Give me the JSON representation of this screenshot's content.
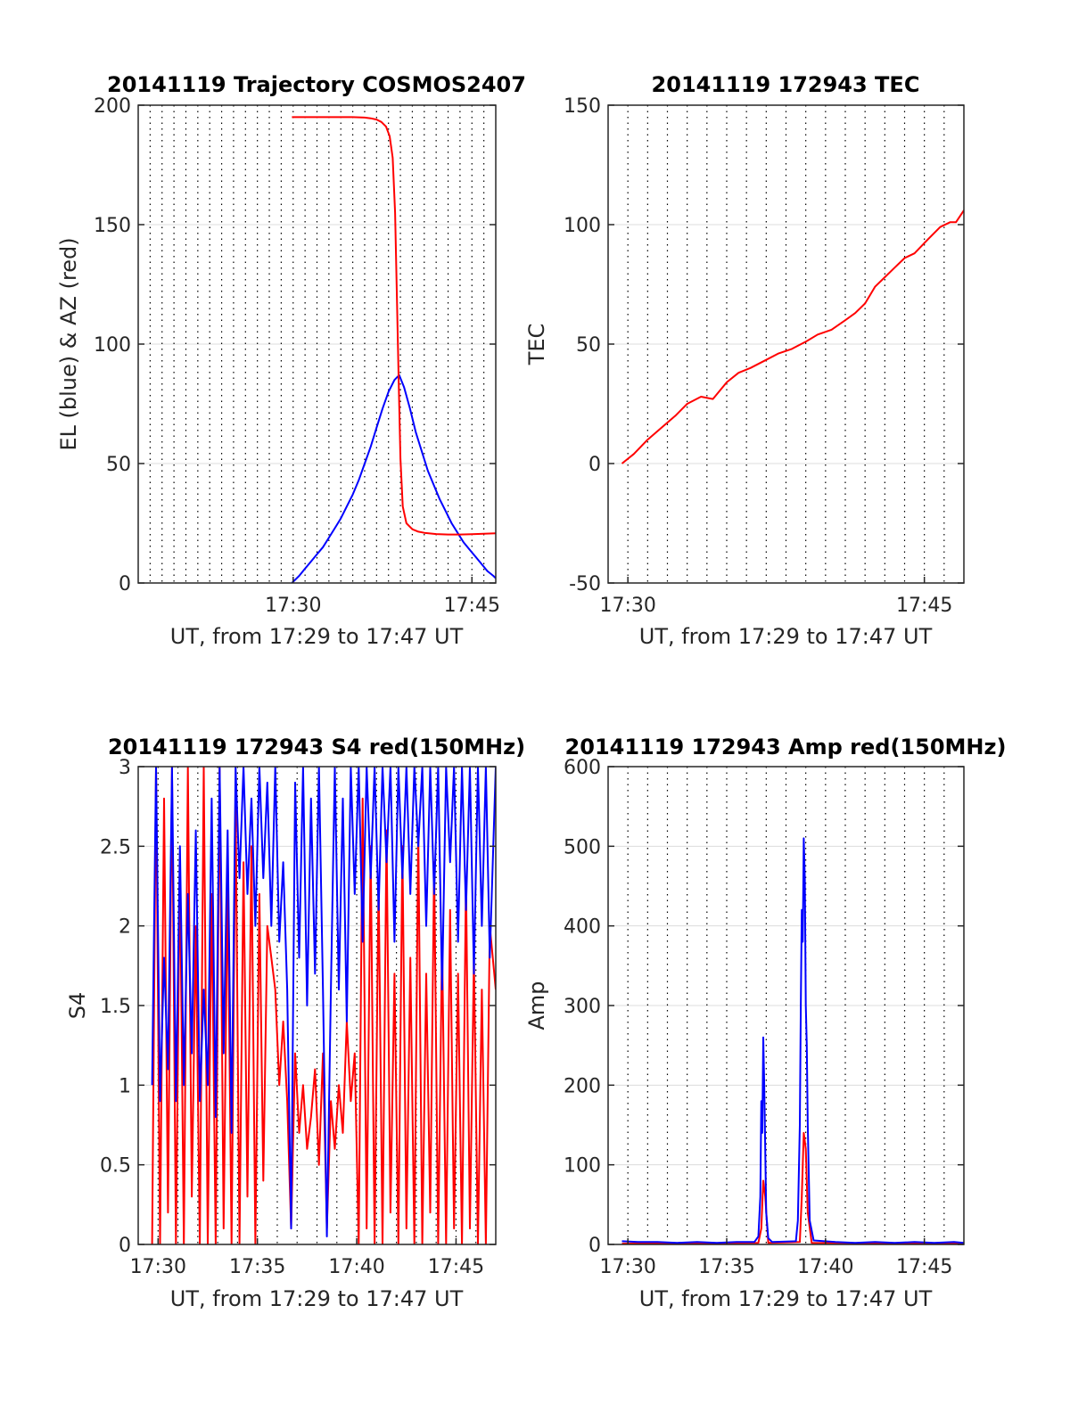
{
  "chart_data": [
    {
      "type": "line",
      "title": "20141119 Trajectory COSMOS2407",
      "xlabel": "UT, from 17:29 to 17:47 UT",
      "ylabel": "EL (blue) & AZ (red)",
      "xlim": [
        17.0,
        47.0
      ],
      "ylim": [
        0,
        200
      ],
      "x_ticks": [
        30,
        45
      ],
      "x_tick_labels": [
        "17:30",
        "17:45"
      ],
      "y_ticks": [
        0,
        50,
        100,
        150,
        200
      ],
      "y_tick_labels": [
        "0",
        "50",
        "100",
        "150",
        "200"
      ],
      "grid": true,
      "series": [
        {
          "color": "#0000ff",
          "x": [
            29.9,
            30.5,
            31.0,
            31.5,
            32.0,
            32.5,
            33.0,
            33.5,
            34.0,
            34.5,
            35.0,
            35.5,
            36.0,
            36.5,
            37.0,
            37.5,
            38.0,
            38.5,
            38.9,
            39.3,
            39.8,
            40.3,
            40.8,
            41.3,
            41.8,
            42.3,
            42.8,
            43.3,
            43.8,
            44.3,
            44.8,
            45.3,
            45.8,
            46.3,
            46.8,
            47.0
          ],
          "values": [
            0,
            3,
            6,
            9,
            12,
            15,
            19,
            23,
            27,
            32,
            37,
            43,
            50,
            57,
            65,
            73,
            80,
            85,
            87,
            82,
            73,
            63,
            55,
            47,
            41,
            35,
            30,
            25,
            21,
            17,
            14,
            11,
            8,
            5,
            3,
            2
          ]
        },
        {
          "color": "#ff0000",
          "x": [
            29.9,
            31.0,
            32.0,
            33.0,
            34.0,
            35.0,
            36.0,
            36.5,
            37.0,
            37.4,
            37.8,
            38.1,
            38.35,
            38.55,
            38.7,
            38.85,
            39.0,
            39.2,
            39.5,
            40.0,
            40.5,
            41.0,
            42.0,
            43.0,
            44.0,
            45.0,
            46.0,
            47.0
          ],
          "values": [
            195,
            195,
            195,
            195,
            195,
            195,
            194.8,
            194.5,
            194,
            193,
            191,
            187,
            178,
            155,
            120,
            85,
            52,
            32,
            25,
            22.5,
            21.5,
            21,
            20.5,
            20.3,
            20.3,
            20.4,
            20.6,
            20.8
          ]
        }
      ]
    },
    {
      "type": "line",
      "title": "20141119 172943 TEC",
      "xlabel": "UT, from 17:29 to 17:47 UT",
      "ylabel": "TEC",
      "xlim": [
        29.0,
        47.0
      ],
      "ylim": [
        -50,
        150
      ],
      "x_ticks": [
        30,
        45
      ],
      "x_tick_labels": [
        "17:30",
        "17:45"
      ],
      "y_ticks": [
        -50,
        0,
        50,
        100,
        150
      ],
      "y_tick_labels": [
        "-50",
        "0",
        "50",
        "100",
        "150"
      ],
      "grid": true,
      "series": [
        {
          "color": "#ff0000",
          "x": [
            29.7,
            30.3,
            31.0,
            31.7,
            32.4,
            33.0,
            33.7,
            34.3,
            35.0,
            35.6,
            36.2,
            36.9,
            37.6,
            38.3,
            39.0,
            39.6,
            40.3,
            41.0,
            41.5,
            42.0,
            42.5,
            43.0,
            43.5,
            44.0,
            44.5,
            45.2,
            45.8,
            46.3,
            46.6,
            47.0
          ],
          "values": [
            0,
            4,
            10,
            15,
            20,
            25,
            28,
            27,
            34,
            38,
            40,
            43,
            46,
            48,
            51,
            54,
            56,
            60,
            63,
            67,
            74,
            78,
            82,
            86,
            88,
            94,
            99,
            101,
            101,
            106
          ]
        }
      ]
    },
    {
      "type": "line",
      "title": "20141119 172943 S4 red(150MHz)",
      "xlabel": "UT, from 17:29 to 17:47 UT",
      "ylabel": "S4",
      "xlim": [
        29.0,
        47.0
      ],
      "ylim": [
        0,
        3
      ],
      "x_ticks": [
        30,
        35,
        40,
        45
      ],
      "x_tick_labels": [
        "17:30",
        "17:35",
        "17:40",
        "17:45"
      ],
      "y_ticks": [
        0,
        0.5,
        1,
        1.5,
        2,
        2.5,
        3
      ],
      "y_tick_labels": [
        "0",
        "0.5",
        "1",
        "1.5",
        "2",
        "2.5",
        "3"
      ],
      "grid": true,
      "series": [
        {
          "color": "#ff0000",
          "x": [
            29.7,
            29.9,
            30.1,
            30.3,
            30.5,
            30.7,
            30.9,
            31.1,
            31.3,
            31.5,
            31.7,
            31.9,
            32.1,
            32.3,
            32.5,
            32.7,
            32.9,
            33.1,
            33.3,
            33.5,
            33.7,
            33.9,
            34.1,
            34.3,
            34.5,
            34.7,
            34.9,
            35.1,
            35.3,
            35.5,
            35.7,
            35.9,
            36.1,
            36.3,
            36.5,
            36.7,
            36.9,
            37.1,
            37.3,
            37.5,
            37.7,
            37.9,
            38.1,
            38.3,
            38.5,
            38.7,
            38.9,
            39.1,
            39.3,
            39.5,
            39.7,
            39.9,
            40.1,
            40.3,
            40.5,
            40.7,
            40.9,
            41.1,
            41.3,
            41.5,
            41.7,
            41.9,
            42.1,
            42.3,
            42.5,
            42.7,
            42.9,
            43.1,
            43.3,
            43.5,
            43.7,
            43.9,
            44.1,
            44.3,
            44.5,
            44.7,
            44.9,
            45.1,
            45.3,
            45.5,
            45.7,
            45.9,
            46.1,
            46.3,
            46.5,
            46.7,
            47.0
          ],
          "values": [
            0,
            3,
            0,
            2.8,
            0.2,
            3,
            0,
            2.4,
            0,
            3,
            0.3,
            2,
            0,
            3,
            0,
            2.2,
            0,
            3,
            0.1,
            2.3,
            0,
            2.8,
            0,
            2.4,
            0.3,
            2.5,
            0,
            2.2,
            0.4,
            2.0,
            1.8,
            1.6,
            1.0,
            1.4,
            0.9,
            0.1,
            1.2,
            0.7,
            1.0,
            0.6,
            0.8,
            1.1,
            0.5,
            1.2,
            0.1,
            0.9,
            0.6,
            1.0,
            0.7,
            1.4,
            0.9,
            1.2,
            0,
            2.8,
            0.1,
            2.5,
            0,
            2.3,
            0,
            2.6,
            0.2,
            1.7,
            0,
            2.5,
            0.1,
            1.8,
            0,
            2.6,
            0,
            1.7,
            0.2,
            2.4,
            0,
            1.9,
            0,
            2.1,
            0.1,
            1.7,
            0,
            2.3,
            0.1,
            1.8,
            0,
            1.6,
            0,
            2.0,
            1.6
          ]
        },
        {
          "color": "#0000ff",
          "x": [
            29.7,
            29.9,
            30.1,
            30.3,
            30.5,
            30.7,
            30.9,
            31.1,
            31.3,
            31.5,
            31.7,
            31.9,
            32.1,
            32.3,
            32.5,
            32.7,
            32.9,
            33.1,
            33.3,
            33.5,
            33.7,
            33.9,
            34.1,
            34.3,
            34.5,
            34.7,
            34.9,
            35.1,
            35.3,
            35.5,
            35.7,
            35.9,
            36.1,
            36.3,
            36.5,
            36.7,
            36.9,
            37.1,
            37.3,
            37.5,
            37.7,
            37.9,
            38.1,
            38.3,
            38.5,
            38.7,
            38.9,
            39.1,
            39.3,
            39.5,
            39.7,
            39.9,
            40.1,
            40.3,
            40.5,
            40.7,
            40.9,
            41.1,
            41.3,
            41.5,
            41.7,
            41.9,
            42.1,
            42.3,
            42.5,
            42.7,
            42.9,
            43.1,
            43.3,
            43.5,
            43.7,
            43.9,
            44.1,
            44.3,
            44.5,
            44.7,
            44.9,
            45.1,
            45.3,
            45.5,
            45.7,
            45.9,
            46.1,
            46.3,
            46.5,
            46.7,
            47.0
          ],
          "values": [
            1.0,
            3,
            0.9,
            1.8,
            1.1,
            3,
            0.9,
            2.5,
            1.0,
            2.2,
            1.2,
            2.6,
            0.9,
            1.6,
            1.0,
            2.8,
            0.8,
            3,
            1.2,
            2.6,
            0.7,
            3,
            2.3,
            3,
            2.2,
            2.8,
            2.0,
            3,
            2.3,
            2.9,
            2.0,
            3,
            1.9,
            2.4,
            1.6,
            0.1,
            2.9,
            1.8,
            3,
            1.5,
            2.8,
            1.7,
            3,
            1.6,
            0.05,
            1.6,
            3,
            1.6,
            2.8,
            1.4,
            3,
            2.2,
            3,
            1.9,
            3,
            2.3,
            3,
            2.1,
            3,
            2.4,
            3,
            1.9,
            3,
            2.3,
            3,
            2.2,
            3,
            2.5,
            3,
            2.0,
            3,
            2.2,
            3,
            1.6,
            3,
            2.4,
            3,
            1.9,
            3,
            2.1,
            3,
            1.7,
            3,
            2.0,
            3,
            1.8,
            3
          ]
        }
      ]
    },
    {
      "type": "line",
      "title": "20141119 172943 Amp red(150MHz)",
      "xlabel": "UT, from 17:29 to 17:47 UT",
      "ylabel": "Amp",
      "xlim": [
        29.0,
        47.0
      ],
      "ylim": [
        0,
        600
      ],
      "x_ticks": [
        30,
        35,
        40,
        45
      ],
      "x_tick_labels": [
        "17:30",
        "17:35",
        "17:40",
        "17:45"
      ],
      "y_ticks": [
        0,
        100,
        200,
        300,
        400,
        500,
        600
      ],
      "y_tick_labels": [
        "0",
        "100",
        "200",
        "300",
        "400",
        "500",
        "600"
      ],
      "grid": true,
      "series": [
        {
          "color": "#ff0000",
          "x": [
            29.7,
            36.6,
            36.75,
            36.85,
            36.95,
            37.1,
            38.7,
            38.8,
            38.9,
            39.0,
            39.1,
            39.3,
            47.0
          ],
          "values": [
            1,
            2,
            20,
            80,
            60,
            2,
            3,
            60,
            140,
            120,
            40,
            2,
            1
          ]
        },
        {
          "color": "#0000ff",
          "x": [
            29.7,
            30.5,
            31.5,
            32.5,
            33.5,
            34.5,
            35.5,
            36.4,
            36.6,
            36.7,
            36.75,
            36.8,
            36.85,
            36.9,
            36.95,
            37.0,
            37.1,
            37.3,
            38.5,
            38.6,
            38.7,
            38.75,
            38.8,
            38.85,
            38.9,
            38.95,
            39.0,
            39.05,
            39.1,
            39.2,
            39.4,
            40.5,
            41.5,
            42.5,
            43.5,
            44.5,
            45.5,
            46.5,
            47.0
          ],
          "values": [
            4,
            3,
            3,
            2,
            3,
            2,
            3,
            3,
            10,
            60,
            180,
            140,
            260,
            200,
            120,
            40,
            8,
            3,
            4,
            30,
            150,
            300,
            420,
            380,
            510,
            460,
            300,
            250,
            150,
            30,
            5,
            3,
            2,
            3,
            2,
            3,
            2,
            3,
            2
          ]
        }
      ]
    }
  ]
}
